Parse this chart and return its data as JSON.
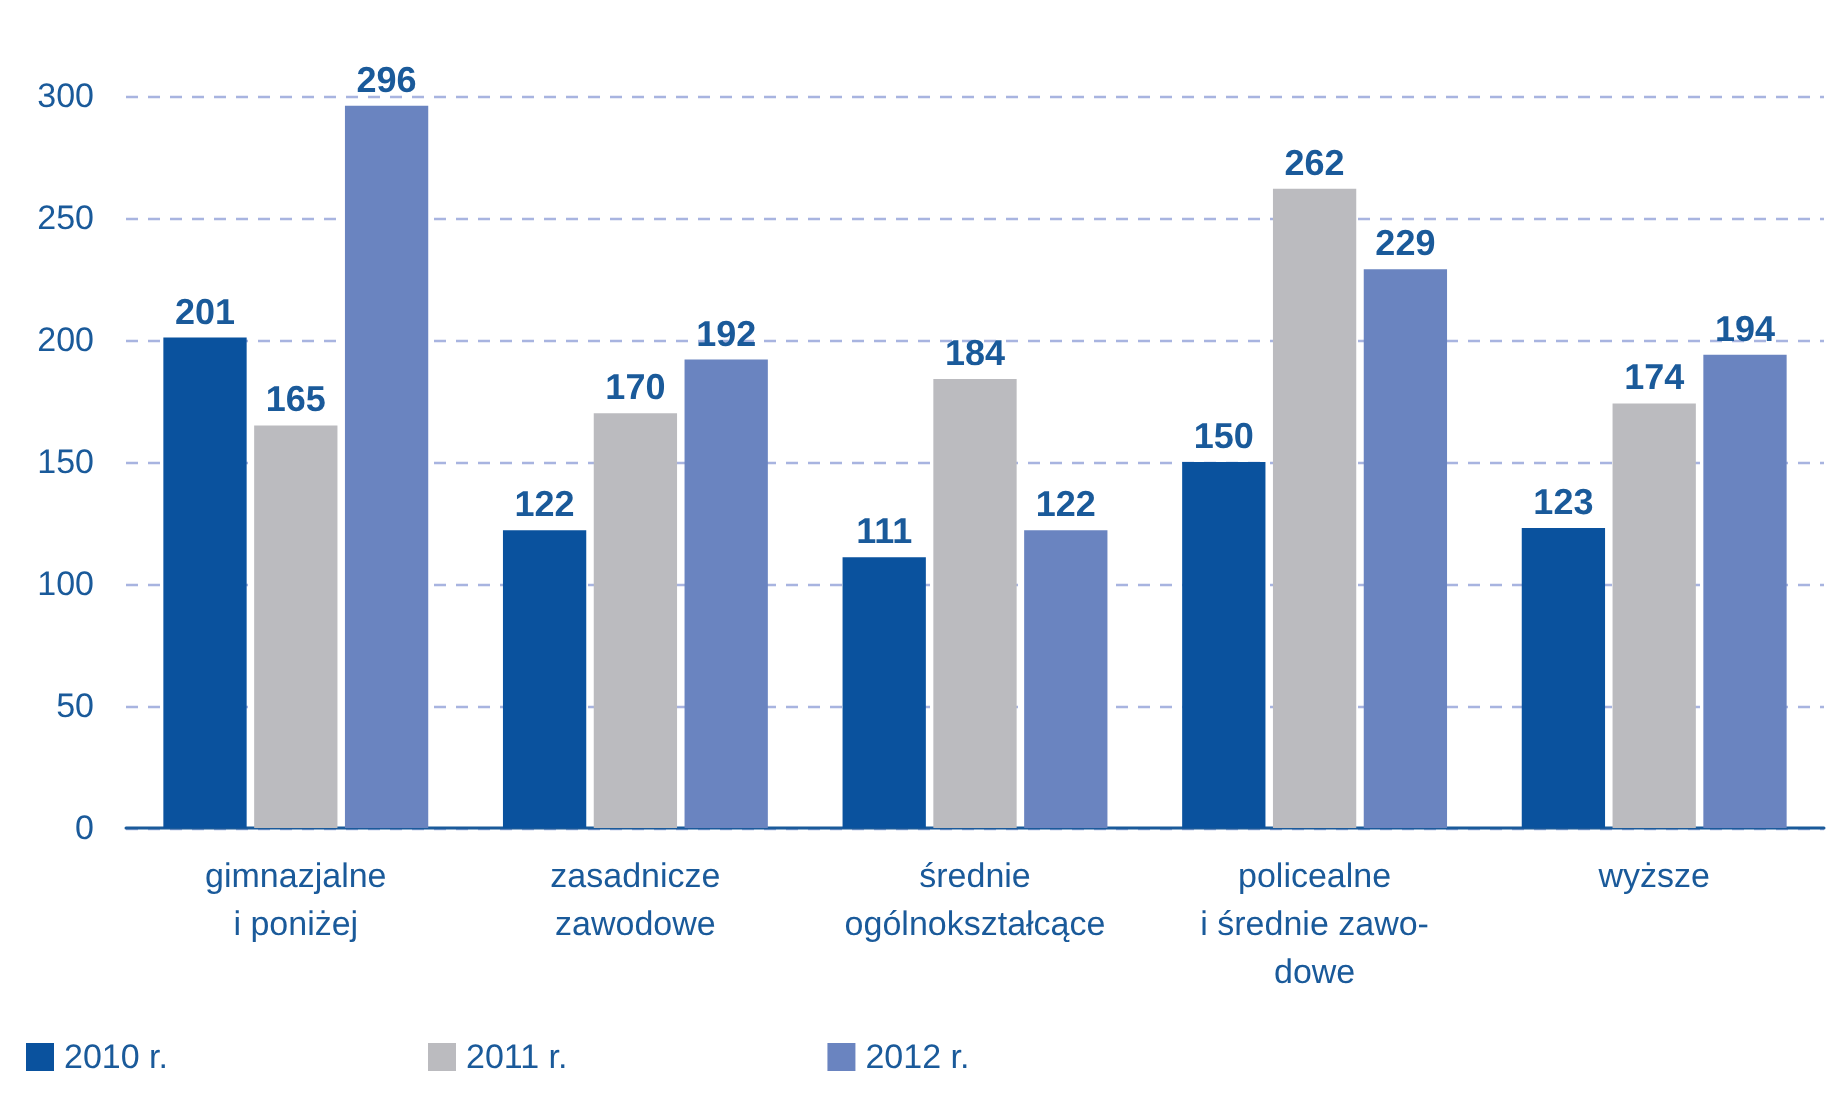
{
  "chart_data": {
    "type": "bar",
    "categories": [
      "gimnazjalne\ni poniżej",
      "zasadnicze\nzawodowe",
      "średnie\nogólnokształcące",
      "policealne\ni średnie zawo-\ndowe",
      "wyższe"
    ],
    "series": [
      {
        "name": "2010 r.",
        "color": "#0a529e",
        "values": [
          201,
          122,
          111,
          150,
          123
        ]
      },
      {
        "name": "2011 r.",
        "color": "#bbbbbf",
        "values": [
          165,
          170,
          184,
          262,
          174
        ]
      },
      {
        "name": "2012 r.",
        "color": "#6a84c0",
        "values": [
          296,
          192,
          122,
          229,
          194
        ]
      }
    ],
    "ylim": [
      0,
      300
    ],
    "yticks": [
      0,
      50,
      100,
      150,
      200,
      250,
      300
    ],
    "grid": "y",
    "legend": "bottom left",
    "data_labels": true
  }
}
